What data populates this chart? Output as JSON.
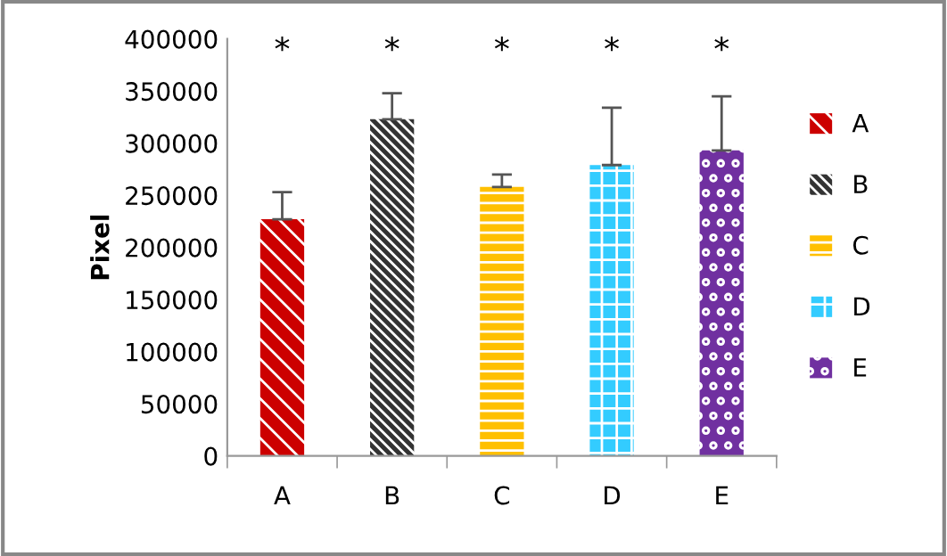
{
  "chart_data": {
    "type": "bar",
    "ylabel": "Pixel",
    "categories": [
      "A",
      "B",
      "C",
      "D",
      "E"
    ],
    "series": [
      {
        "name": "A",
        "color": "#cc0000",
        "values": [
          227000,
          null,
          null,
          null,
          null
        ],
        "errors": [
          [
            227000,
            253000
          ],
          null,
          null,
          null,
          null
        ]
      },
      {
        "name": "B",
        "color": "#333333",
        "values": [
          null,
          323000,
          null,
          null,
          null
        ],
        "errors": [
          null,
          [
            323000,
            348000
          ],
          null,
          null,
          null
        ]
      },
      {
        "name": "C",
        "color": "#ffc000",
        "values": [
          null,
          null,
          258000,
          null,
          null
        ],
        "errors": [
          null,
          null,
          [
            258000,
            270000
          ],
          null,
          null
        ]
      },
      {
        "name": "D",
        "color": "#33ccff",
        "values": [
          null,
          null,
          null,
          279000,
          null
        ],
        "errors": [
          null,
          null,
          null,
          [
            279000,
            334000
          ],
          null
        ]
      },
      {
        "name": "E",
        "color": "#7030a0",
        "values": [
          null,
          null,
          null,
          null,
          293000
        ],
        "errors": [
          null,
          null,
          null,
          null,
          [
            293000,
            345000
          ]
        ]
      }
    ],
    "ylim": [
      0,
      400000
    ],
    "yticks": [
      0,
      50000,
      100000,
      150000,
      200000,
      250000,
      300000,
      350000,
      400000
    ],
    "grid": false,
    "legend": "right",
    "annotations": [
      "*",
      "*",
      "*",
      "*",
      "*"
    ]
  }
}
